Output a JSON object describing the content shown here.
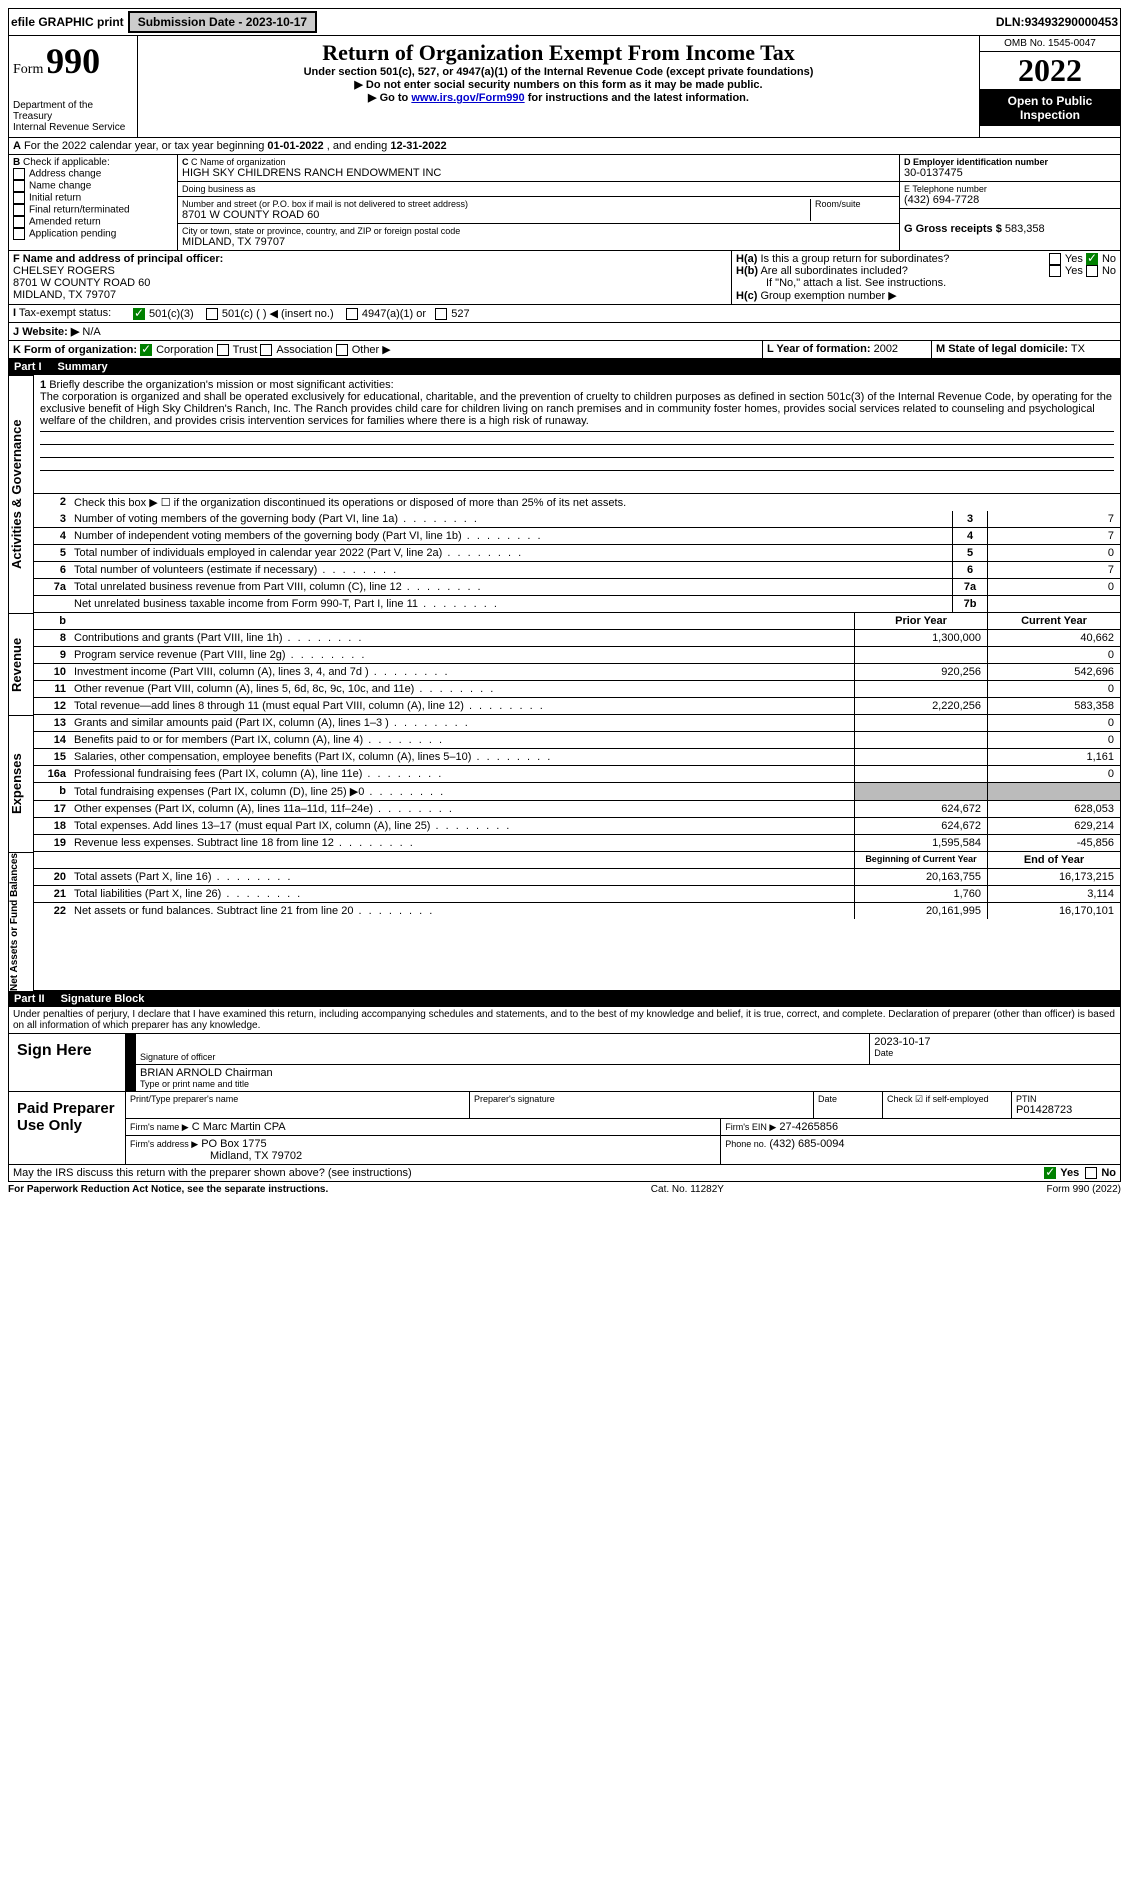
{
  "top": {
    "efile": "efile GRAPHIC print",
    "submission": "Submission Date - 2023-10-17",
    "dln_label": "DLN: ",
    "dln": "93493290000453"
  },
  "header": {
    "form_word": "Form",
    "form_num": "990",
    "dept": "Department of the Treasury",
    "irs": "Internal Revenue Service",
    "title": "Return of Organization Exempt From Income Tax",
    "sub1": "Under section 501(c), 527, or 4947(a)(1) of the Internal Revenue Code (except private foundations)",
    "sub2": "▶ Do not enter social security numbers on this form as it may be made public.",
    "sub3_pre": "▶ Go to ",
    "sub3_link": "www.irs.gov/Form990",
    "sub3_post": " for instructions and the latest information.",
    "omb": "OMB No. 1545-0047",
    "year": "2022",
    "open": "Open to Public Inspection"
  },
  "A": {
    "text_pre": "For the 2022 calendar year, or tax year beginning ",
    "begin": "01-01-2022",
    "mid": " , and ending ",
    "end": "12-31-2022"
  },
  "B": {
    "header": "Check if applicable:",
    "items": [
      "Address change",
      "Name change",
      "Initial return",
      "Final return/terminated",
      "Amended return",
      "Application pending"
    ]
  },
  "C": {
    "name_lbl": "C Name of organization",
    "name": "HIGH SKY CHILDRENS RANCH ENDOWMENT INC",
    "dba_lbl": "Doing business as",
    "dba": "",
    "street_lbl": "Number and street (or P.O. box if mail is not delivered to street address)",
    "room_lbl": "Room/suite",
    "street": "8701 W COUNTY ROAD 60",
    "city_lbl": "City or town, state or province, country, and ZIP or foreign postal code",
    "city": "MIDLAND, TX  79707"
  },
  "D": {
    "lbl": "D Employer identification number",
    "val": "30-0137475"
  },
  "E": {
    "lbl": "E Telephone number",
    "val": "(432) 694-7728"
  },
  "G": {
    "lbl": "G Gross receipts $",
    "val": "583,358"
  },
  "F": {
    "lbl": "F  Name and address of principal officer:",
    "name": "CHELSEY ROGERS",
    "street": "8701 W COUNTY ROAD 60",
    "city": "MIDLAND, TX  79707"
  },
  "H": {
    "a": "Is this a group return for subordinates?",
    "b": "Are all subordinates included?",
    "note": "If \"No,\" attach a list. See instructions.",
    "c": "Group exemption number ▶",
    "yes": "Yes",
    "no": "No"
  },
  "I": {
    "lbl": "Tax-exempt status:",
    "opts": [
      "501(c)(3)",
      "501(c) (  ) ◀ (insert no.)",
      "4947(a)(1) or",
      "527"
    ]
  },
  "J": {
    "lbl": "Website: ▶",
    "val": "N/A"
  },
  "K": {
    "lbl": "K Form of organization:",
    "opts": [
      "Corporation",
      "Trust",
      "Association",
      "Other ▶"
    ]
  },
  "L": {
    "lbl": "L Year of formation:",
    "val": "2002"
  },
  "M": {
    "lbl": "M State of legal domicile:",
    "val": "TX"
  },
  "partI": {
    "label": "Part I",
    "title": "Summary"
  },
  "summary": {
    "l1_lbl": "Briefly describe the organization's mission or most significant activities:",
    "l1_text": "The corporation is organized and shall be operated exclusively for educational, charitable, and the prevention of cruelty to children purposes as defined in section 501c(3) of the Internal Revenue Code, by operating for the exclusive benefit of High Sky Children's Ranch, Inc. The Ranch provides child care for children living on ranch premises and in community foster homes, provides social services related to counseling and psychological welfare of the children, and provides crisis intervention services for families where there is a high risk of runaway.",
    "l2": "Check this box ▶ ☐ if the organization discontinued its operations or disposed of more than 25% of its net assets.",
    "rows_gov": [
      {
        "n": "3",
        "t": "Number of voting members of the governing body (Part VI, line 1a)",
        "k": "3",
        "v": "7"
      },
      {
        "n": "4",
        "t": "Number of independent voting members of the governing body (Part VI, line 1b)",
        "k": "4",
        "v": "7"
      },
      {
        "n": "5",
        "t": "Total number of individuals employed in calendar year 2022 (Part V, line 2a)",
        "k": "5",
        "v": "0"
      },
      {
        "n": "6",
        "t": "Total number of volunteers (estimate if necessary)",
        "k": "6",
        "v": "7"
      },
      {
        "n": "7a",
        "t": "Total unrelated business revenue from Part VIII, column (C), line 12",
        "k": "7a",
        "v": "0"
      },
      {
        "n": "",
        "t": "Net unrelated business taxable income from Form 990-T, Part I, line 11",
        "k": "7b",
        "v": ""
      }
    ],
    "hdr_b": "b",
    "prior": "Prior Year",
    "current": "Current Year",
    "rows_rev": [
      {
        "n": "8",
        "t": "Contributions and grants (Part VIII, line 1h)",
        "p": "1,300,000",
        "c": "40,662"
      },
      {
        "n": "9",
        "t": "Program service revenue (Part VIII, line 2g)",
        "p": "",
        "c": "0"
      },
      {
        "n": "10",
        "t": "Investment income (Part VIII, column (A), lines 3, 4, and 7d )",
        "p": "920,256",
        "c": "542,696"
      },
      {
        "n": "11",
        "t": "Other revenue (Part VIII, column (A), lines 5, 6d, 8c, 9c, 10c, and 11e)",
        "p": "",
        "c": "0"
      },
      {
        "n": "12",
        "t": "Total revenue—add lines 8 through 11 (must equal Part VIII, column (A), line 12)",
        "p": "2,220,256",
        "c": "583,358"
      }
    ],
    "rows_exp": [
      {
        "n": "13",
        "t": "Grants and similar amounts paid (Part IX, column (A), lines 1–3 )",
        "p": "",
        "c": "0"
      },
      {
        "n": "14",
        "t": "Benefits paid to or for members (Part IX, column (A), line 4)",
        "p": "",
        "c": "0"
      },
      {
        "n": "15",
        "t": "Salaries, other compensation, employee benefits (Part IX, column (A), lines 5–10)",
        "p": "",
        "c": "1,161"
      },
      {
        "n": "16a",
        "t": "Professional fundraising fees (Part IX, column (A), line 11e)",
        "p": "",
        "c": "0"
      },
      {
        "n": "b",
        "t": "Total fundraising expenses (Part IX, column (D), line 25) ▶0",
        "p": "SHADE",
        "c": "SHADE"
      },
      {
        "n": "17",
        "t": "Other expenses (Part IX, column (A), lines 11a–11d, 11f–24e)",
        "p": "624,672",
        "c": "628,053"
      },
      {
        "n": "18",
        "t": "Total expenses. Add lines 13–17 (must equal Part IX, column (A), line 25)",
        "p": "624,672",
        "c": "629,214"
      },
      {
        "n": "19",
        "t": "Revenue less expenses. Subtract line 18 from line 12",
        "p": "1,595,584",
        "c": "-45,856"
      }
    ],
    "begin": "Beginning of Current Year",
    "end": "End of Year",
    "rows_net": [
      {
        "n": "20",
        "t": "Total assets (Part X, line 16)",
        "p": "20,163,755",
        "c": "16,173,215"
      },
      {
        "n": "21",
        "t": "Total liabilities (Part X, line 26)",
        "p": "1,760",
        "c": "3,114"
      },
      {
        "n": "22",
        "t": "Net assets or fund balances. Subtract line 21 from line 20",
        "p": "20,161,995",
        "c": "16,170,101"
      }
    ]
  },
  "sections": {
    "gov": "Activities & Governance",
    "rev": "Revenue",
    "exp": "Expenses",
    "net": "Net Assets or Fund Balances"
  },
  "partII": {
    "label": "Part II",
    "title": "Signature Block"
  },
  "penalty": "Under penalties of perjury, I declare that I have examined this return, including accompanying schedules and statements, and to the best of my knowledge and belief, it is true, correct, and complete. Declaration of preparer (other than officer) is based on all information of which preparer has any knowledge.",
  "sign": {
    "here": "Sign Here",
    "sig_lbl": "Signature of officer",
    "date_lbl": "Date",
    "date": "2023-10-17",
    "name": "BRIAN ARNOLD Chairman",
    "name_lbl": "Type or print name and title"
  },
  "paid": {
    "here": "Paid Preparer Use Only",
    "pt_name_lbl": "Print/Type preparer's name",
    "pt_sig_lbl": "Preparer's signature",
    "pt_date_lbl": "Date",
    "pt_check": "Check ☑ if self-employed",
    "ptin_lbl": "PTIN",
    "ptin": "P01428723",
    "firm_name_lbl": "Firm's name    ▶",
    "firm_name": "C Marc Martin CPA",
    "firm_ein_lbl": "Firm's EIN ▶",
    "firm_ein": "27-4265856",
    "firm_addr_lbl": "Firm's address ▶",
    "firm_addr": "PO Box 1775",
    "firm_city": "Midland, TX  79702",
    "phone_lbl": "Phone no.",
    "phone": "(432) 685-0094"
  },
  "discuss": {
    "text": "May the IRS discuss this return with the preparer shown above? (see instructions)",
    "yes": "Yes",
    "no": "No"
  },
  "footer": {
    "left": "For Paperwork Reduction Act Notice, see the separate instructions.",
    "mid": "Cat. No. 11282Y",
    "right": "Form 990 (2022)"
  }
}
